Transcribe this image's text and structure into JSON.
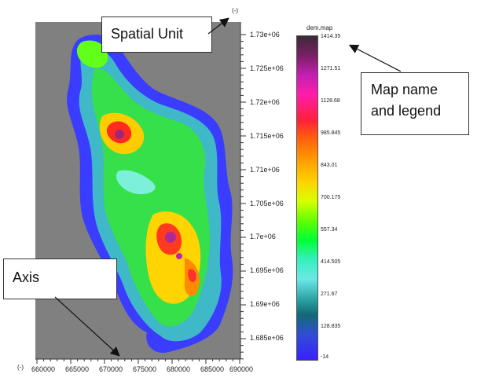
{
  "map": {
    "x_unit": "(-)",
    "y_unit": "(-)",
    "x_ticks": [
      "660000",
      "665000",
      "670000",
      "675000",
      "680000",
      "685000",
      "690000"
    ],
    "y_ticks": [
      "1.73e+06",
      "1.725e+06",
      "1.72e+06",
      "1.715e+06",
      "1.71e+06",
      "1.705e+06",
      "1.7e+06",
      "1.695e+06",
      "1.69e+06",
      "1.685e+06"
    ],
    "background_color": "#808080"
  },
  "legend": {
    "title": "dem.map",
    "labels": [
      "1414.35",
      "1271.51",
      "1128.68",
      "985.845",
      "843.01",
      "700.175",
      "557.34",
      "414.505",
      "271.67",
      "128.835",
      "-14"
    ]
  },
  "callouts": {
    "spatial_unit": "Spatial Unit",
    "map_name_line1": "Map name",
    "map_name_line2": "and legend",
    "axis": "Axis"
  }
}
